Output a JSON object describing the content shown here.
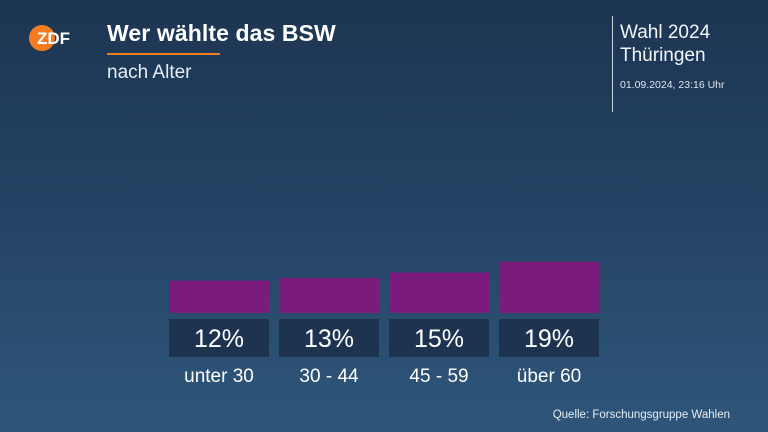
{
  "brand": {
    "logo_text": "ZDF",
    "logo_color": "#f47c20"
  },
  "header": {
    "title": "Wer wählte das BSW",
    "subtitle": "nach Alter",
    "election_line1": "Wahl 2024",
    "election_line2": "Thüringen",
    "timestamp": "01.09.2024, 23:16 Uhr"
  },
  "colors": {
    "bar": "#7b1c7d",
    "label_box": "#1d3350",
    "accent": "#f47c20"
  },
  "chart_data": {
    "type": "bar",
    "categories": [
      "unter 30",
      "30 - 44",
      "45 - 59",
      "über 60"
    ],
    "values": [
      12,
      13,
      15,
      19
    ],
    "value_labels": [
      "12%",
      "13%",
      "15%",
      "19%"
    ],
    "unit": "%",
    "axes_visible": false,
    "grid": false
  },
  "footer": {
    "source": "Quelle: Forschungsgruppe Wahlen"
  }
}
